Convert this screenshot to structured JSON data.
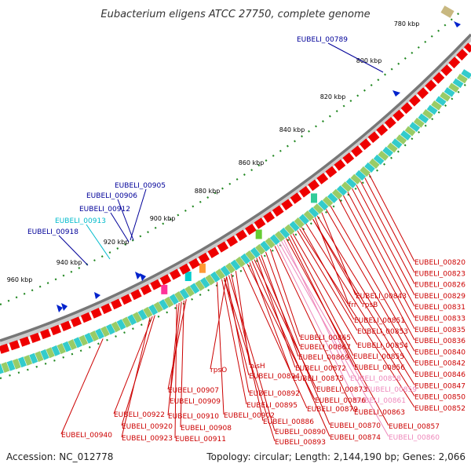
{
  "header": {
    "title": "Eubacterium eligens ATCC 27750, complete genome"
  },
  "footer": {
    "accession": "Accession: NC_012778",
    "summary": "Topology: circular; Length: 2,144,190 bp; Genes: 2,066"
  },
  "colors": {
    "forward_strand": "#ee0000",
    "label_red": "#cc0000",
    "label_blue": "#000099",
    "label_cyan": "#00bbcc",
    "label_pink": "#ee88bb",
    "tick_green": "#228822",
    "backbone": "#777777"
  },
  "scale": {
    "ticks": [
      {
        "label": "780 kbp",
        "kbp": 780
      },
      {
        "label": "800 kbp",
        "kbp": 800
      },
      {
        "label": "820 kbp",
        "kbp": 820
      },
      {
        "label": "840 kbp",
        "kbp": 840
      },
      {
        "label": "860 kbp",
        "kbp": 860
      },
      {
        "label": "880 kbp",
        "kbp": 880
      },
      {
        "label": "900 kbp",
        "kbp": 900
      },
      {
        "label": "920 kbp",
        "kbp": 920
      },
      {
        "label": "940 kbp",
        "kbp": 940
      },
      {
        "label": "960 kbp",
        "kbp": 960
      }
    ]
  },
  "labels_blue": [
    {
      "text": "EUBELI_00789",
      "color": "blue",
      "kbp": 790
    },
    {
      "text": "EUBELI_00905",
      "color": "blue",
      "kbp": 913
    },
    {
      "text": "EUBELI_00906",
      "color": "blue",
      "kbp": 914
    },
    {
      "text": "EUBELI_00912",
      "color": "blue",
      "kbp": 920
    },
    {
      "text": "EUBELI_00913",
      "color": "cyan",
      "kbp": 921
    },
    {
      "text": "EUBELI_00918",
      "color": "blue",
      "kbp": 926
    }
  ],
  "labels_right": [
    {
      "text": "EUBELI_00820",
      "color": "red",
      "kbp": 820
    },
    {
      "text": "EUBELI_00823",
      "color": "red",
      "kbp": 822
    },
    {
      "text": "EUBELI_00826",
      "color": "red",
      "kbp": 824
    },
    {
      "text": "EUBELI_00829",
      "color": "red",
      "kbp": 826
    },
    {
      "text": "EUBELI_00831",
      "color": "red",
      "kbp": 828
    },
    {
      "text": "EUBELI_00833",
      "color": "red",
      "kbp": 830
    },
    {
      "text": "EUBELI_00835",
      "color": "red",
      "kbp": 832
    },
    {
      "text": "EUBELI_00836",
      "color": "red",
      "kbp": 834
    },
    {
      "text": "EUBELI_00840",
      "color": "red",
      "kbp": 838
    },
    {
      "text": "EUBELI_00842",
      "color": "red",
      "kbp": 840
    },
    {
      "text": "EUBELI_00846",
      "color": "red",
      "kbp": 844
    },
    {
      "text": "EUBELI_00847",
      "color": "red",
      "kbp": 846
    },
    {
      "text": "EUBELI_00850",
      "color": "red",
      "kbp": 849
    },
    {
      "text": "EUBELI_00852",
      "color": "red",
      "kbp": 852
    }
  ],
  "labels_mid": [
    {
      "text": "EUBELI_00843",
      "color": "red",
      "kbp": 842
    },
    {
      "text": "frr",
      "color": "red",
      "kbp": 845
    },
    {
      "text": "rpsB",
      "color": "red",
      "kbp": 846
    },
    {
      "text": "EUBELI_00851",
      "color": "red",
      "kbp": 851
    },
    {
      "text": "EUBELI_00853",
      "color": "red",
      "kbp": 853
    },
    {
      "text": "EUBELI_00854",
      "color": "red",
      "kbp": 855
    },
    {
      "text": "EUBELI_00855",
      "color": "red",
      "kbp": 856
    },
    {
      "text": "EUBELI_00856",
      "color": "red",
      "kbp": 857
    },
    {
      "text": "EUBELI_00858",
      "color": "pink",
      "kbp": 859
    },
    {
      "text": "EUBELI_00859",
      "color": "pink",
      "kbp": 860
    },
    {
      "text": "EUBELI_00861",
      "color": "pink",
      "kbp": 862
    },
    {
      "text": "EUBELI_00863",
      "color": "red",
      "kbp": 863
    },
    {
      "text": "EUBELI_00857",
      "color": "red",
      "kbp": 858
    },
    {
      "text": "EUBELI_00860",
      "color": "pink",
      "kbp": 861
    }
  ],
  "labels_center": [
    {
      "text": "EUBELI_00865",
      "color": "red",
      "kbp": 865
    },
    {
      "text": "EUBELI_00867",
      "color": "red",
      "kbp": 867
    },
    {
      "text": "EUBELI_00869",
      "color": "red",
      "kbp": 869
    },
    {
      "text": "EUBELI_00872",
      "color": "red",
      "kbp": 871
    },
    {
      "text": "EUBELI_00875",
      "color": "red",
      "kbp": 874
    },
    {
      "text": "EUBELI_00873",
      "color": "red",
      "kbp": 872
    },
    {
      "text": "EUBELI_00876",
      "color": "red",
      "kbp": 875
    },
    {
      "text": "EUBELI_00879",
      "color": "red",
      "kbp": 877
    },
    {
      "text": "EUBELI_00870",
      "color": "red",
      "kbp": 870
    },
    {
      "text": "EUBELI_00874",
      "color": "red",
      "kbp": 873
    }
  ],
  "labels_lower": [
    {
      "text": "hisH",
      "color": "red",
      "kbp": 880
    },
    {
      "text": "rpsO",
      "color": "red",
      "kbp": 884
    },
    {
      "text": "EUBELI_00894",
      "color": "red",
      "kbp": 885
    },
    {
      "text": "EUBELI_00892",
      "color": "red",
      "kbp": 884
    },
    {
      "text": "EUBELI_00895",
      "color": "red",
      "kbp": 886
    },
    {
      "text": "EUBELI_00886",
      "color": "red",
      "kbp": 882
    },
    {
      "text": "EUBELI_00890",
      "color": "red",
      "kbp": 883
    },
    {
      "text": "EUBELI_00893",
      "color": "red",
      "kbp": 885
    },
    {
      "text": "EUBELI_00902",
      "color": "red",
      "kbp": 888
    },
    {
      "text": "EUBELI_00907",
      "color": "red",
      "kbp": 901
    },
    {
      "text": "EUBELI_00909",
      "color": "red",
      "kbp": 903
    },
    {
      "text": "EUBELI_00910",
      "color": "red",
      "kbp": 904
    },
    {
      "text": "EUBELI_00908",
      "color": "red",
      "kbp": 902
    },
    {
      "text": "EUBELI_00911",
      "color": "red",
      "kbp": 905
    },
    {
      "text": "EUBELI_00922",
      "color": "red",
      "kbp": 915
    },
    {
      "text": "EUBELI_00920",
      "color": "red",
      "kbp": 914
    },
    {
      "text": "EUBELI_00923",
      "color": "red",
      "kbp": 916
    },
    {
      "text": "EUBELI_00940",
      "color": "red",
      "kbp": 935
    }
  ]
}
